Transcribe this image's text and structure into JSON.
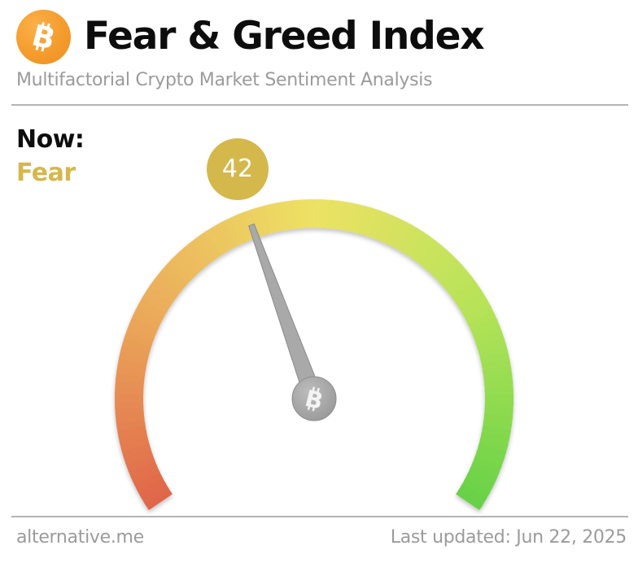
{
  "header": {
    "title": "Fear & Greed Index",
    "subtitle": "Multifactorial Crypto Market Sentiment Analysis",
    "logo_icon": "bitcoin-icon",
    "logo_color": "#f7931a"
  },
  "now": {
    "label": "Now:",
    "classification": "Fear",
    "value": "42",
    "accent_color": "#d4b84c"
  },
  "gauge": {
    "min": 0,
    "max": 100,
    "value": 42,
    "colors": [
      "#e0654a",
      "#ebab5a",
      "#ede264",
      "#b5e358",
      "#66d146"
    ],
    "needle_color": "#a9a9a9",
    "hub_icon": "bitcoin-icon"
  },
  "footer": {
    "source": "alternative.me",
    "last_updated": "Last updated: Jun 22, 2025"
  }
}
